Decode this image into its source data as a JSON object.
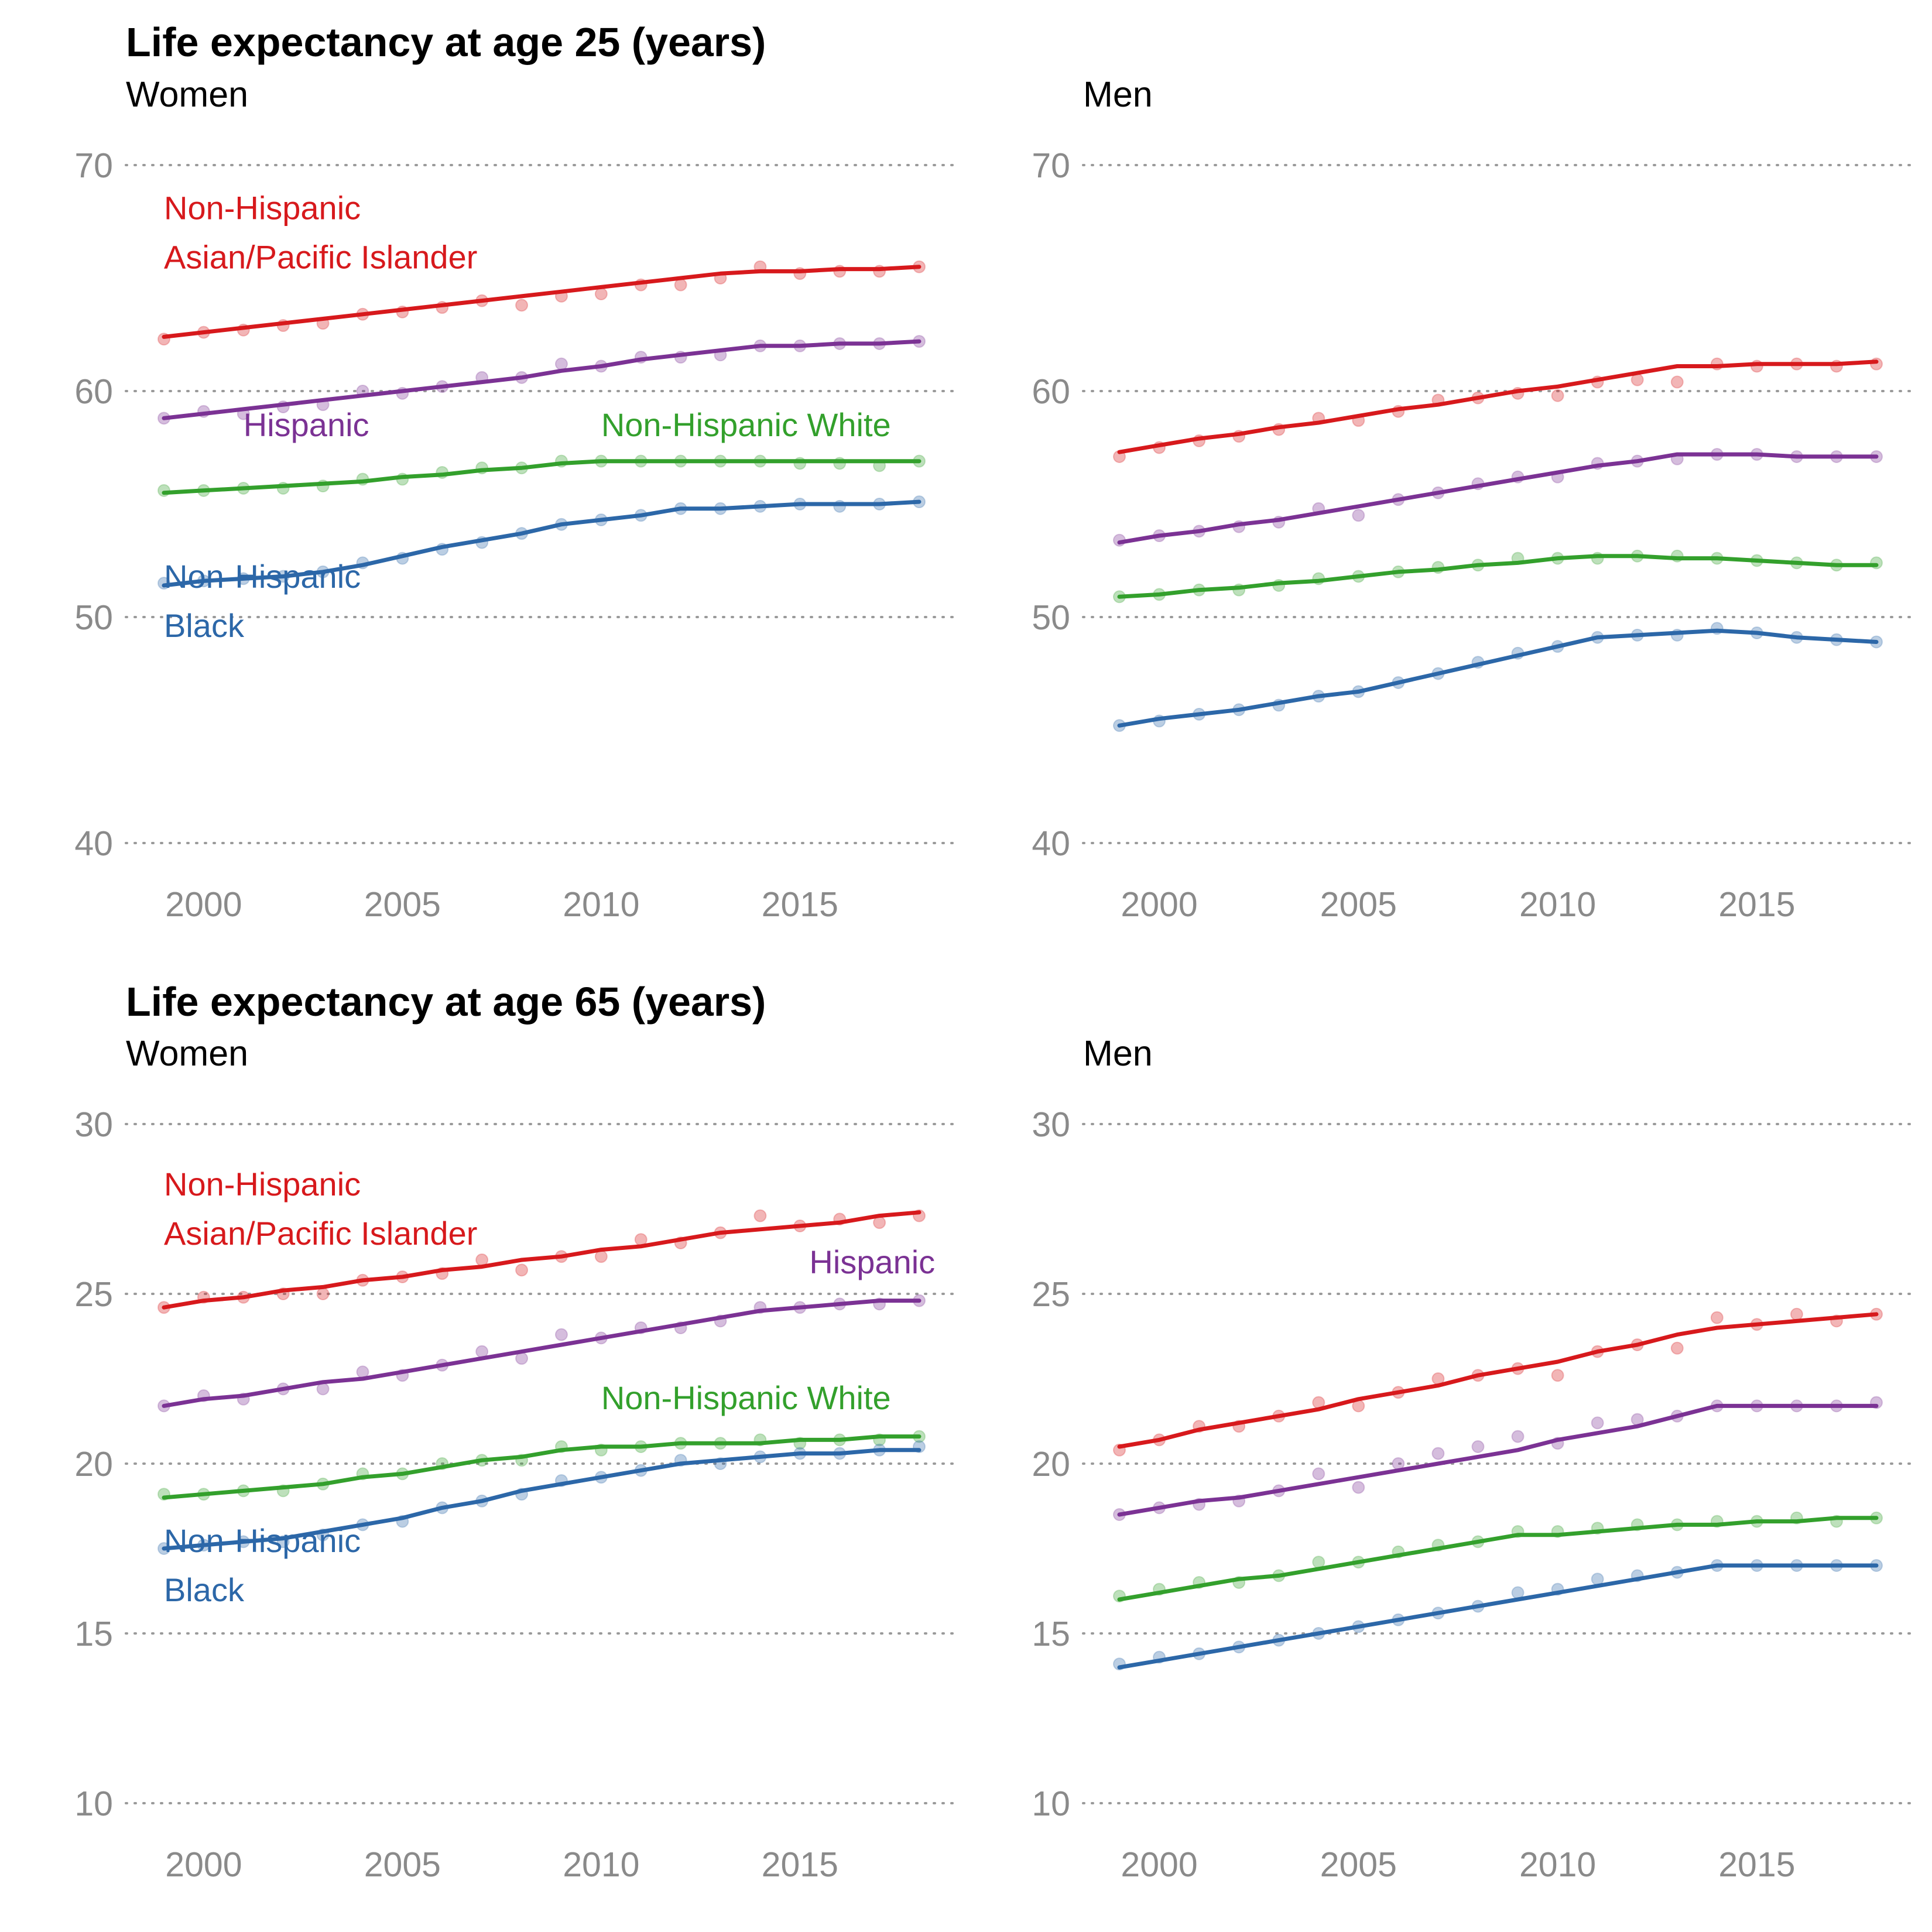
{
  "colors": {
    "asian": "#d7191c",
    "hispanic": "#7b3294",
    "white": "#33a02c",
    "black": "#2c67a8"
  },
  "chart_data": [
    {
      "type": "line",
      "title": "Life expectancy at age 25 (years)",
      "subtitle": "Women",
      "ylim": [
        40,
        70
      ],
      "yticks": [
        "40",
        "50",
        "60",
        "70"
      ],
      "xticks": [
        "2000",
        "2005",
        "2010",
        "2015"
      ],
      "grid": true,
      "x": [
        1999,
        2000,
        2001,
        2002,
        2003,
        2004,
        2005,
        2006,
        2007,
        2008,
        2009,
        2010,
        2011,
        2012,
        2013,
        2014,
        2015,
        2016,
        2017,
        2018
      ],
      "series": [
        {
          "key": "asian",
          "name": [
            "Non-Hispanic",
            "Asian/Pacific Islander"
          ],
          "points": [
            62.3,
            62.6,
            62.7,
            62.9,
            63.0,
            63.4,
            63.5,
            63.7,
            64.0,
            63.8,
            64.2,
            64.3,
            64.7,
            64.7,
            65.0,
            65.5,
            65.2,
            65.3,
            65.3,
            65.5
          ],
          "trend": [
            62.4,
            62.6,
            62.8,
            63.0,
            63.2,
            63.4,
            63.6,
            63.8,
            64.0,
            64.2,
            64.4,
            64.6,
            64.8,
            65.0,
            65.2,
            65.3,
            65.3,
            65.4,
            65.4,
            65.5
          ]
        },
        {
          "key": "hispanic",
          "name": [
            "Hispanic"
          ],
          "points": [
            58.8,
            59.1,
            59.0,
            59.3,
            59.4,
            60.0,
            59.9,
            60.2,
            60.6,
            60.6,
            61.2,
            61.1,
            61.5,
            61.5,
            61.6,
            62.0,
            62.0,
            62.1,
            62.1,
            62.2
          ],
          "trend": [
            58.8,
            59.0,
            59.2,
            59.4,
            59.6,
            59.8,
            60.0,
            60.2,
            60.4,
            60.6,
            60.9,
            61.1,
            61.4,
            61.6,
            61.8,
            62.0,
            62.0,
            62.1,
            62.1,
            62.2
          ]
        },
        {
          "key": "white",
          "name": [
            "Non-Hispanic White"
          ],
          "points": [
            55.6,
            55.6,
            55.7,
            55.7,
            55.8,
            56.1,
            56.1,
            56.4,
            56.6,
            56.6,
            56.9,
            56.9,
            56.9,
            56.9,
            56.9,
            56.9,
            56.8,
            56.8,
            56.7,
            56.9
          ],
          "trend": [
            55.5,
            55.6,
            55.7,
            55.8,
            55.9,
            56.0,
            56.2,
            56.3,
            56.5,
            56.6,
            56.8,
            56.9,
            56.9,
            56.9,
            56.9,
            56.9,
            56.9,
            56.9,
            56.9,
            56.9
          ]
        },
        {
          "key": "black",
          "name": [
            "Non-Hispanic",
            "Black"
          ],
          "points": [
            51.5,
            51.6,
            51.7,
            51.8,
            52.0,
            52.4,
            52.6,
            53.0,
            53.3,
            53.7,
            54.1,
            54.3,
            54.5,
            54.8,
            54.8,
            54.9,
            55.0,
            54.9,
            55.0,
            55.1
          ],
          "trend": [
            51.4,
            51.6,
            51.7,
            51.8,
            52.0,
            52.3,
            52.7,
            53.1,
            53.4,
            53.7,
            54.1,
            54.3,
            54.5,
            54.8,
            54.8,
            54.9,
            55.0,
            55.0,
            55.0,
            55.1
          ]
        }
      ]
    },
    {
      "type": "line",
      "title": "",
      "subtitle": "Men",
      "ylim": [
        40,
        70
      ],
      "yticks": [
        "40",
        "50",
        "60",
        "70"
      ],
      "xticks": [
        "2000",
        "2005",
        "2010",
        "2015"
      ],
      "grid": true,
      "x": [
        1999,
        2000,
        2001,
        2002,
        2003,
        2004,
        2005,
        2006,
        2007,
        2008,
        2009,
        2010,
        2011,
        2012,
        2013,
        2014,
        2015,
        2016,
        2017,
        2018
      ],
      "series": [
        {
          "key": "asian",
          "name": [],
          "points": [
            57.1,
            57.5,
            57.8,
            58.0,
            58.3,
            58.8,
            58.7,
            59.1,
            59.6,
            59.7,
            59.9,
            59.8,
            60.4,
            60.5,
            60.4,
            61.2,
            61.1,
            61.2,
            61.1,
            61.2
          ],
          "trend": [
            57.3,
            57.6,
            57.9,
            58.1,
            58.4,
            58.6,
            58.9,
            59.2,
            59.4,
            59.7,
            60.0,
            60.2,
            60.5,
            60.8,
            61.1,
            61.1,
            61.2,
            61.2,
            61.2,
            61.3
          ]
        },
        {
          "key": "hispanic",
          "name": [],
          "points": [
            53.4,
            53.6,
            53.8,
            54.0,
            54.2,
            54.8,
            54.5,
            55.2,
            55.5,
            55.9,
            56.2,
            56.2,
            56.8,
            56.9,
            57.0,
            57.2,
            57.2,
            57.1,
            57.1,
            57.1
          ],
          "trend": [
            53.3,
            53.6,
            53.8,
            54.1,
            54.3,
            54.6,
            54.9,
            55.2,
            55.5,
            55.8,
            56.1,
            56.4,
            56.7,
            56.9,
            57.2,
            57.2,
            57.2,
            57.1,
            57.1,
            57.1
          ]
        },
        {
          "key": "white",
          "name": [],
          "points": [
            50.9,
            51.0,
            51.2,
            51.2,
            51.4,
            51.7,
            51.8,
            52.0,
            52.2,
            52.3,
            52.6,
            52.6,
            52.6,
            52.7,
            52.7,
            52.6,
            52.5,
            52.4,
            52.3,
            52.4
          ],
          "trend": [
            50.9,
            51.0,
            51.2,
            51.3,
            51.5,
            51.6,
            51.8,
            52.0,
            52.1,
            52.3,
            52.4,
            52.6,
            52.7,
            52.7,
            52.6,
            52.6,
            52.5,
            52.4,
            52.3,
            52.3
          ]
        },
        {
          "key": "black",
          "name": [],
          "points": [
            45.2,
            45.4,
            45.7,
            45.9,
            46.1,
            46.5,
            46.7,
            47.1,
            47.5,
            48.0,
            48.4,
            48.7,
            49.1,
            49.2,
            49.2,
            49.5,
            49.3,
            49.1,
            49.0,
            48.9
          ],
          "trend": [
            45.2,
            45.5,
            45.7,
            45.9,
            46.2,
            46.5,
            46.7,
            47.1,
            47.5,
            47.9,
            48.3,
            48.7,
            49.1,
            49.2,
            49.3,
            49.4,
            49.3,
            49.1,
            49.0,
            48.9
          ]
        }
      ]
    },
    {
      "type": "line",
      "title": "Life expectancy at age 65 (years)",
      "subtitle": "Women",
      "ylim": [
        10,
        30
      ],
      "yticks": [
        "10",
        "15",
        "20",
        "25",
        "30"
      ],
      "xticks": [
        "2000",
        "2005",
        "2010",
        "2015"
      ],
      "grid": true,
      "x": [
        1999,
        2000,
        2001,
        2002,
        2003,
        2004,
        2005,
        2006,
        2007,
        2008,
        2009,
        2010,
        2011,
        2012,
        2013,
        2014,
        2015,
        2016,
        2017,
        2018
      ],
      "series": [
        {
          "key": "asian",
          "name": [
            "Non-Hispanic",
            "Asian/Pacific Islander"
          ],
          "points": [
            24.6,
            24.9,
            24.9,
            25.0,
            25.0,
            25.4,
            25.5,
            25.6,
            26.0,
            25.7,
            26.1,
            26.1,
            26.6,
            26.5,
            26.8,
            27.3,
            27.0,
            27.2,
            27.1,
            27.3
          ],
          "trend": [
            24.6,
            24.8,
            24.9,
            25.1,
            25.2,
            25.4,
            25.5,
            25.7,
            25.8,
            26.0,
            26.1,
            26.3,
            26.4,
            26.6,
            26.8,
            26.9,
            27.0,
            27.1,
            27.3,
            27.4
          ]
        },
        {
          "key": "hispanic",
          "name": [
            "Hispanic"
          ],
          "points": [
            21.7,
            22.0,
            21.9,
            22.2,
            22.2,
            22.7,
            22.6,
            22.9,
            23.3,
            23.1,
            23.8,
            23.7,
            24.0,
            24.0,
            24.2,
            24.6,
            24.6,
            24.7,
            24.7,
            24.8
          ],
          "trend": [
            21.7,
            21.9,
            22.0,
            22.2,
            22.4,
            22.5,
            22.7,
            22.9,
            23.1,
            23.3,
            23.5,
            23.7,
            23.9,
            24.1,
            24.3,
            24.5,
            24.6,
            24.7,
            24.8,
            24.8
          ]
        },
        {
          "key": "white",
          "name": [
            "Non-Hispanic White"
          ],
          "points": [
            19.1,
            19.1,
            19.2,
            19.2,
            19.4,
            19.7,
            19.7,
            20.0,
            20.1,
            20.1,
            20.5,
            20.4,
            20.5,
            20.6,
            20.6,
            20.7,
            20.6,
            20.7,
            20.7,
            20.8
          ],
          "trend": [
            19.0,
            19.1,
            19.2,
            19.3,
            19.4,
            19.6,
            19.7,
            19.9,
            20.1,
            20.2,
            20.4,
            20.5,
            20.5,
            20.6,
            20.6,
            20.6,
            20.7,
            20.7,
            20.8,
            20.8
          ]
        },
        {
          "key": "black",
          "name": [
            "Non-Hispanic",
            "Black"
          ],
          "points": [
            17.5,
            17.6,
            17.7,
            17.7,
            17.9,
            18.2,
            18.3,
            18.7,
            18.9,
            19.1,
            19.5,
            19.6,
            19.8,
            20.1,
            20.0,
            20.2,
            20.3,
            20.3,
            20.4,
            20.5
          ],
          "trend": [
            17.5,
            17.6,
            17.7,
            17.8,
            18.0,
            18.2,
            18.4,
            18.7,
            18.9,
            19.2,
            19.4,
            19.6,
            19.8,
            20.0,
            20.1,
            20.2,
            20.3,
            20.3,
            20.4,
            20.4
          ]
        }
      ]
    },
    {
      "type": "line",
      "title": "",
      "subtitle": "Men",
      "ylim": [
        10,
        30
      ],
      "yticks": [
        "10",
        "15",
        "20",
        "25",
        "30"
      ],
      "xticks": [
        "2000",
        "2005",
        "2010",
        "2015"
      ],
      "grid": true,
      "x": [
        1999,
        2000,
        2001,
        2002,
        2003,
        2004,
        2005,
        2006,
        2007,
        2008,
        2009,
        2010,
        2011,
        2012,
        2013,
        2014,
        2015,
        2016,
        2017,
        2018
      ],
      "series": [
        {
          "key": "asian",
          "name": [],
          "points": [
            20.4,
            20.7,
            21.1,
            21.1,
            21.4,
            21.8,
            21.7,
            22.1,
            22.5,
            22.6,
            22.8,
            22.6,
            23.3,
            23.5,
            23.4,
            24.3,
            24.1,
            24.4,
            24.2,
            24.4
          ],
          "trend": [
            20.5,
            20.7,
            21.0,
            21.2,
            21.4,
            21.6,
            21.9,
            22.1,
            22.3,
            22.6,
            22.8,
            23.0,
            23.3,
            23.5,
            23.8,
            24.0,
            24.1,
            24.2,
            24.3,
            24.4
          ]
        },
        {
          "key": "hispanic",
          "name": [],
          "points": [
            18.5,
            18.7,
            18.8,
            18.9,
            19.2,
            19.7,
            19.3,
            20.0,
            20.3,
            20.5,
            20.8,
            20.6,
            21.2,
            21.3,
            21.4,
            21.7,
            21.7,
            21.7,
            21.7,
            21.8
          ],
          "trend": [
            18.5,
            18.7,
            18.9,
            19.0,
            19.2,
            19.4,
            19.6,
            19.8,
            20.0,
            20.2,
            20.4,
            20.7,
            20.9,
            21.1,
            21.4,
            21.7,
            21.7,
            21.7,
            21.7,
            21.7
          ]
        },
        {
          "key": "white",
          "name": [],
          "points": [
            16.1,
            16.3,
            16.5,
            16.5,
            16.7,
            17.1,
            17.1,
            17.4,
            17.6,
            17.7,
            18.0,
            18.0,
            18.1,
            18.2,
            18.2,
            18.3,
            18.3,
            18.4,
            18.3,
            18.4
          ],
          "trend": [
            16.0,
            16.2,
            16.4,
            16.6,
            16.7,
            16.9,
            17.1,
            17.3,
            17.5,
            17.7,
            17.9,
            17.9,
            18.0,
            18.1,
            18.2,
            18.2,
            18.3,
            18.3,
            18.4,
            18.4
          ]
        },
        {
          "key": "black",
          "name": [],
          "points": [
            14.1,
            14.3,
            14.4,
            14.6,
            14.8,
            15.0,
            15.2,
            15.4,
            15.6,
            15.8,
            16.2,
            16.3,
            16.6,
            16.7,
            16.8,
            17.0,
            17.0,
            17.0,
            17.0,
            17.0
          ],
          "trend": [
            14.0,
            14.2,
            14.4,
            14.6,
            14.8,
            15.0,
            15.2,
            15.4,
            15.6,
            15.8,
            16.0,
            16.2,
            16.4,
            16.6,
            16.8,
            17.0,
            17.0,
            17.0,
            17.0,
            17.0
          ]
        }
      ]
    }
  ]
}
